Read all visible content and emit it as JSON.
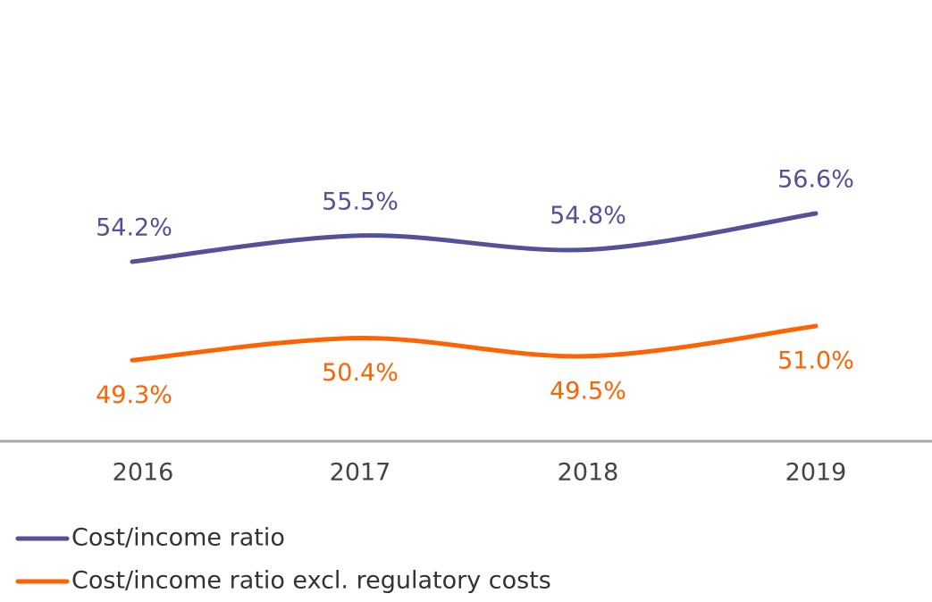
{
  "chart_data": {
    "type": "line",
    "categories": [
      "2016",
      "2017",
      "2018",
      "2019"
    ],
    "series": [
      {
        "name": "Cost/income ratio",
        "color": "#525199",
        "values": [
          54.2,
          55.5,
          54.8,
          56.6
        ],
        "value_labels": [
          "54.2%",
          "55.5%",
          "54.8%",
          "56.6%"
        ]
      },
      {
        "name": "Cost/income ratio excl. regulatory costs",
        "color": "#ff6200",
        "values": [
          49.3,
          50.4,
          49.5,
          51.0
        ],
        "value_labels": [
          "49.3%",
          "50.4%",
          "49.5%",
          "51.0%"
        ]
      }
    ],
    "ylim": [
      45.27,
      67.22
    ],
    "legend": "bottom-left"
  }
}
